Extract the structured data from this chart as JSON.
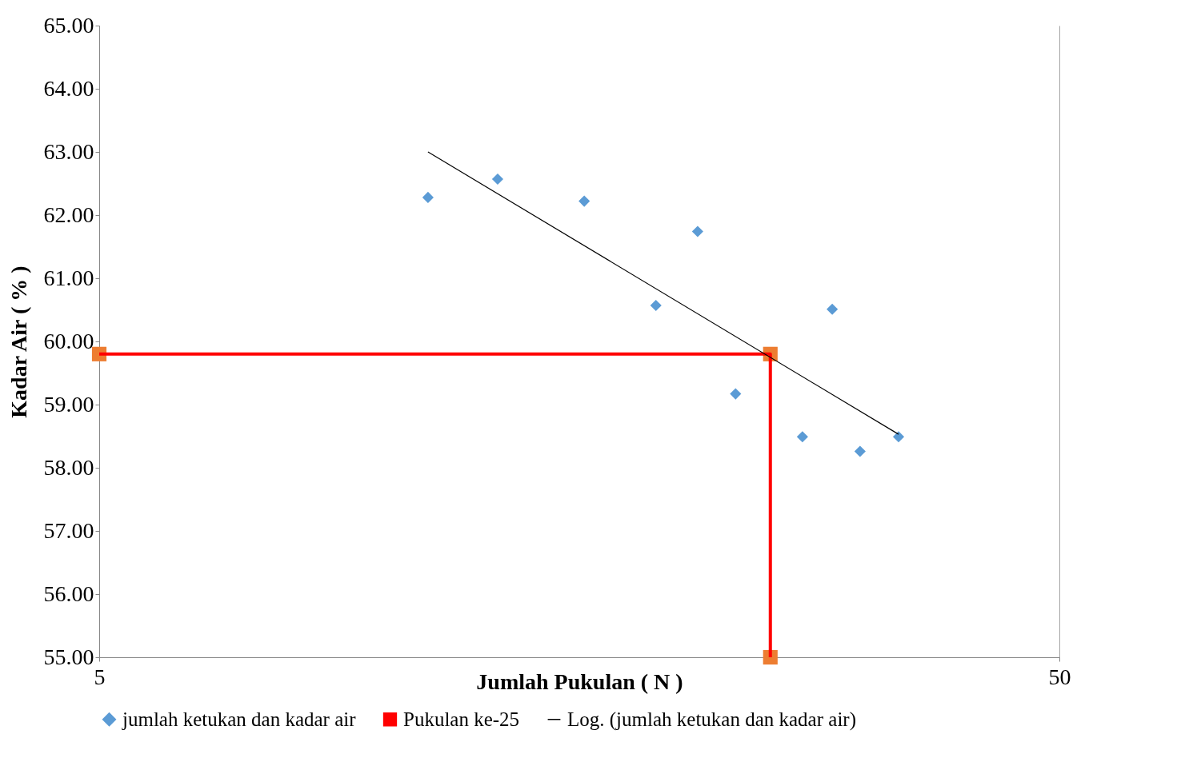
{
  "chart_data": {
    "type": "scatter",
    "xlabel": "Jumlah Pukulan ( N )",
    "ylabel": "Kadar Air ( % )",
    "log": "x",
    "xlim": [
      5,
      50
    ],
    "xticks": [
      5,
      50
    ],
    "ylim": [
      55,
      65
    ],
    "yticks": [
      {
        "value": 55,
        "label": "55.00"
      },
      {
        "value": 56,
        "label": "56.00"
      },
      {
        "value": 57,
        "label": "57.00"
      },
      {
        "value": 58,
        "label": "58.00"
      },
      {
        "value": 59,
        "label": "59.00"
      },
      {
        "value": 60,
        "label": "60.00"
      },
      {
        "value": 61,
        "label": "61.00"
      },
      {
        "value": 62,
        "label": "62.00"
      },
      {
        "value": 63,
        "label": "63.00"
      },
      {
        "value": 64,
        "label": "64.00"
      },
      {
        "value": 65,
        "label": "65.00"
      }
    ],
    "grid": "x",
    "legend": "bottom",
    "series": [
      {
        "name": "jumlah ketukan dan kadar air",
        "marker": "diamond",
        "color": "#5b9bd5",
        "x": [
          11,
          13,
          16,
          19,
          21,
          23,
          27,
          29,
          31,
          34
        ],
        "values": [
          62.28,
          62.57,
          62.22,
          60.57,
          61.74,
          59.17,
          58.49,
          60.51,
          58.26,
          58.49
        ]
      },
      {
        "name": "Pukulan ke-25",
        "type": "line",
        "marker": "square",
        "color": "#ff0000",
        "colors": [
          "#ed7d31",
          "#ed7d31",
          "#ed7d31"
        ],
        "x": [
          5,
          25,
          25
        ],
        "values": [
          59.8,
          59.8,
          55
        ]
      },
      {
        "name": "Log. (jumlah ketukan dan kadar air)",
        "type": "line",
        "marker": "none",
        "color": "#000000",
        "x": [
          11,
          34
        ],
        "values": [
          63.0,
          58.53
        ]
      }
    ]
  }
}
